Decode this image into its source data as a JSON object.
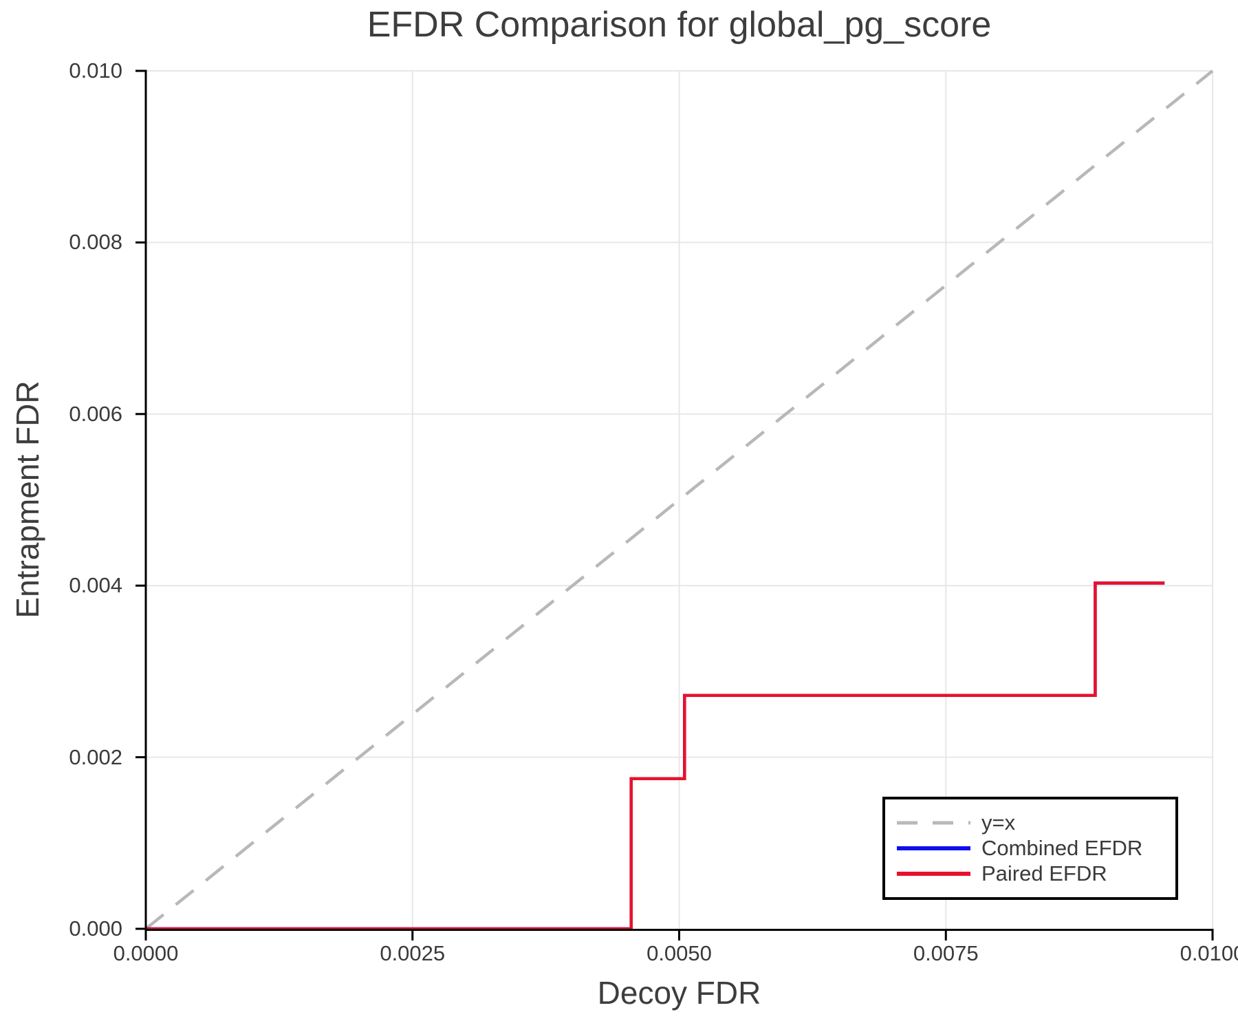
{
  "title": "EFDR Comparison for global_pg_score",
  "axes": {
    "x_label": "Decoy FDR",
    "y_label": "Entrapment FDR",
    "x_tick_labels": [
      "0.0000",
      "0.0025",
      "0.0050",
      "0.0075",
      "0.0100"
    ],
    "y_tick_labels": [
      "0.000",
      "0.002",
      "0.004",
      "0.006",
      "0.008",
      "0.010"
    ]
  },
  "legend": {
    "items": [
      {
        "label": "y=x",
        "color": "#b8b8b8",
        "dashed": true
      },
      {
        "label": "Combined EFDR",
        "color": "#0f0fee",
        "dashed": false
      },
      {
        "label": "Paired EFDR",
        "color": "#e8112d",
        "dashed": false
      }
    ]
  },
  "chart_data": {
    "type": "line",
    "title": "EFDR Comparison for global_pg_score",
    "xlabel": "Decoy FDR",
    "ylabel": "Entrapment FDR",
    "xlim": [
      0,
      0.01
    ],
    "ylim": [
      0,
      0.01
    ],
    "xticks": [
      0,
      0.0025,
      0.005,
      0.0075,
      0.01
    ],
    "yticks": [
      0,
      0.002,
      0.004,
      0.006,
      0.008,
      0.01
    ],
    "grid": true,
    "legend_position": "lower right",
    "series": [
      {
        "name": "y=x",
        "style": "dashed",
        "color": "#b8b8b8",
        "x": [
          0,
          0.01
        ],
        "y": [
          0,
          0.01
        ]
      },
      {
        "name": "Combined EFDR",
        "style": "solid",
        "color": "#0f0fee",
        "x": [
          0,
          0.00455,
          0.00455,
          0.00505,
          0.00505,
          0.0089,
          0.0089,
          0.00955
        ],
        "y": [
          0,
          0,
          0.00175,
          0.00175,
          0.00272,
          0.00272,
          0.00403,
          0.00403
        ]
      },
      {
        "name": "Paired EFDR",
        "style": "solid",
        "color": "#e8112d",
        "x": [
          0,
          0.00455,
          0.00455,
          0.00505,
          0.00505,
          0.0089,
          0.0089,
          0.00955
        ],
        "y": [
          0,
          0,
          0.00175,
          0.00175,
          0.00272,
          0.00272,
          0.00403,
          0.00403
        ]
      }
    ]
  }
}
